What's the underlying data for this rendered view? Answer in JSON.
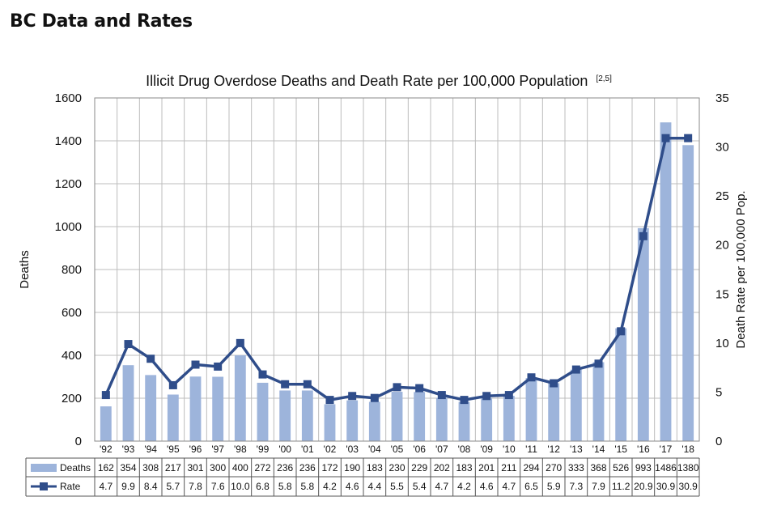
{
  "page": {
    "heading": "BC Data and Rates"
  },
  "chart_data": {
    "type": "bar",
    "title": "Illicit Drug Overdose Deaths and Death Rate per 100,000 Population",
    "title_reference": "[2,5]",
    "categories": [
      "'92",
      "'93",
      "'94",
      "'95",
      "'96",
      "'97",
      "'98",
      "'99",
      "'00",
      "'01",
      "'02",
      "'03",
      "'04",
      "'05",
      "'06",
      "'07",
      "'08",
      "'09",
      "'10",
      "'11",
      "'12",
      "'13",
      "'14",
      "'15",
      "'16",
      "'17",
      "'18"
    ],
    "series": [
      {
        "name": "Deaths",
        "type": "bar",
        "axis": "left",
        "color": "#9db4db",
        "values": [
          162,
          354,
          308,
          217,
          301,
          300,
          400,
          272,
          236,
          236,
          172,
          190,
          183,
          230,
          229,
          202,
          183,
          201,
          211,
          294,
          270,
          333,
          368,
          526,
          993,
          1486,
          1380
        ]
      },
      {
        "name": "Rate",
        "type": "line",
        "axis": "right",
        "color": "#2f4d8a",
        "values": [
          4.7,
          9.9,
          8.4,
          5.7,
          7.8,
          7.6,
          10.0,
          6.8,
          5.8,
          5.8,
          4.2,
          4.6,
          4.4,
          5.5,
          5.4,
          4.7,
          4.2,
          4.6,
          4.7,
          6.5,
          5.9,
          7.3,
          7.9,
          11.2,
          20.9,
          30.9,
          30.9
        ]
      }
    ],
    "ylabel": "Deaths",
    "ylabel_right": "Death Rate per 100,000 Pop.",
    "ylim": [
      0,
      1600
    ],
    "ylim_right": [
      0,
      35
    ],
    "yticks": [
      0,
      200,
      400,
      600,
      800,
      1000,
      1200,
      1400,
      1600
    ],
    "yticks_right": [
      0,
      5,
      10,
      15,
      20,
      25,
      30,
      35
    ],
    "grid": true,
    "legend": "data-table-below"
  }
}
